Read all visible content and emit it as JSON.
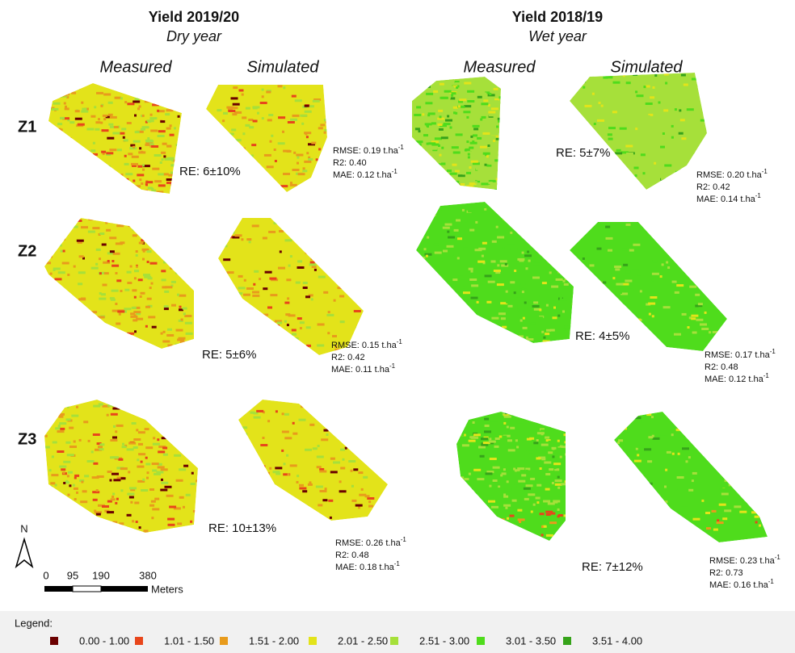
{
  "panels": [
    {
      "title": "Yield 2019/20",
      "subtitle": "Dry year",
      "columns": [
        "Measured",
        "Simulated"
      ],
      "rows": [
        {
          "re": "RE: 6±10%",
          "stats": [
            {
              "text": "RMSE: 0.19 t.ha",
              "sup": "-1"
            },
            {
              "text": "R2: 0.40"
            },
            {
              "text": "MAE: 0.12 t.ha",
              "sup": "-1"
            }
          ]
        },
        {
          "re": "RE: 5±6%",
          "stats": [
            {
              "text": "RMSE: 0.15 t.ha",
              "sup": "-1"
            },
            {
              "text": "R2: 0.42"
            },
            {
              "text": "MAE: 0.11 t.ha",
              "sup": "-1"
            }
          ]
        },
        {
          "re": "RE: 10±13%",
          "stats": [
            {
              "text": "RMSE: 0.26 t.ha",
              "sup": "-1"
            },
            {
              "text": "R2: 0.48"
            },
            {
              "text": "MAE: 0.18 t.ha",
              "sup": "-1"
            }
          ]
        }
      ]
    },
    {
      "title": "Yield 2018/19",
      "subtitle": "Wet year",
      "columns": [
        "Measured",
        "Simulated"
      ],
      "rows": [
        {
          "re": "RE: 5±7%",
          "stats": [
            {
              "text": "RMSE: 0.20 t.ha",
              "sup": "-1"
            },
            {
              "text": "R2: 0.42"
            },
            {
              "text": "MAE: 0.14 t.ha",
              "sup": "-1"
            }
          ]
        },
        {
          "re": "RE: 4±5%",
          "stats": [
            {
              "text": "RMSE: 0.17 t.ha",
              "sup": "-1"
            },
            {
              "text": "R2: 0.48"
            },
            {
              "text": "MAE: 0.12 t.ha",
              "sup": "-1"
            }
          ]
        },
        {
          "re": "RE: 7±12%",
          "stats": [
            {
              "text": "RMSE: 0.23 t.ha",
              "sup": "-1"
            },
            {
              "text": "R2: 0.73"
            },
            {
              "text": "MAE: 0.16 t.ha",
              "sup": "-1"
            }
          ]
        }
      ]
    }
  ],
  "zones": [
    "Z1",
    "Z2",
    "Z3"
  ],
  "scale": {
    "north": "N",
    "labels": [
      "0",
      "95",
      "190",
      "380"
    ],
    "unit": "Meters"
  },
  "legend": {
    "title": "Legend:",
    "items": [
      {
        "label": "0.00 - 1.00",
        "color": "#6b0000"
      },
      {
        "label": "1.01 - 1.50",
        "color": "#e8461b"
      },
      {
        "label": "1.51 - 2.00",
        "color": "#e89b1c"
      },
      {
        "label": "2.01 - 2.50",
        "color": "#e3e31a"
      },
      {
        "label": "2.51 - 3.00",
        "color": "#a6e03a"
      },
      {
        "label": "3.01 - 3.50",
        "color": "#4fdc1c"
      },
      {
        "label": "3.51 - 4.00",
        "color": "#36a31a"
      }
    ]
  }
}
